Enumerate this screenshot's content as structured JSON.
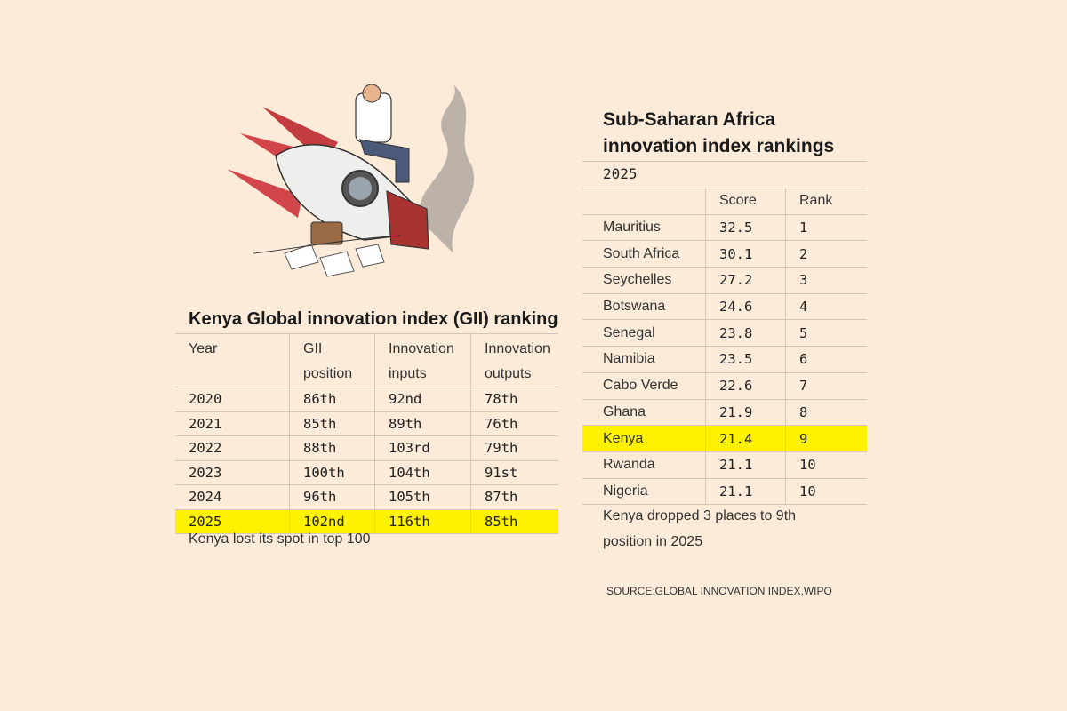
{
  "chart_data": [
    {
      "type": "table",
      "title": "Kenya Global innovation index (GII) ranking",
      "columns": [
        "Year",
        "GII position",
        "Innovation inputs",
        "Innovation outputs"
      ],
      "rows": [
        [
          "2020",
          "86th",
          "92nd",
          "78th"
        ],
        [
          "2021",
          "85th",
          "89th",
          "76th"
        ],
        [
          "2022",
          "88th",
          "103rd",
          "79th"
        ],
        [
          "2023",
          "100th",
          "104th",
          "91st"
        ],
        [
          "2024",
          "96th",
          "105th",
          "87th"
        ],
        [
          "2025",
          "102nd",
          "116th",
          "85th"
        ]
      ],
      "highlighted_row": "2025",
      "note": "Kenya lost its spot in top 100"
    },
    {
      "type": "table",
      "title": "Sub-Saharan Africa innovation index rankings",
      "subtitle": "2025",
      "columns": [
        "",
        "Score",
        "Rank"
      ],
      "rows": [
        [
          "Mauritius",
          "32.5",
          "1"
        ],
        [
          "South Africa",
          "30.1",
          "2"
        ],
        [
          "Seychelles",
          "27.2",
          "3"
        ],
        [
          "Botswana",
          "24.6",
          "4"
        ],
        [
          "Senegal",
          "23.8",
          "5"
        ],
        [
          "Namibia",
          "23.5",
          "6"
        ],
        [
          "Cabo Verde",
          "22.6",
          "7"
        ],
        [
          "Ghana",
          "21.9",
          "8"
        ],
        [
          "Kenya",
          "21.4",
          "9"
        ],
        [
          "Rwanda",
          "21.1",
          "10"
        ],
        [
          "Nigeria",
          "21.1",
          "10"
        ]
      ],
      "highlighted_row": "Kenya",
      "note": "Kenya dropped 3 places to 9th position in 2025"
    }
  ],
  "gii": {
    "title": "Kenya Global innovation index (GII) ranking",
    "head": [
      "Year",
      "GII\nposition",
      "Innovation\ninputs",
      "Innovation\noutputs"
    ],
    "note": "Kenya lost its spot in top 100"
  },
  "ssa": {
    "title_line1": "Sub-Saharan Africa",
    "title_line2": "innovation index rankings",
    "year": "2025",
    "head": [
      "",
      "Score",
      "Rank"
    ],
    "note_line1": "Kenya dropped 3 places to 9th",
    "note_line2": "position in 2025"
  },
  "source": "SOURCE:GLOBAL INNOVATION INDEX,WIPO",
  "colors": {
    "background": "#fbebd8",
    "highlight": "#fff200",
    "rule": "#d3c6b6"
  },
  "illustration": "crashed-rocket-with-sad-businessman"
}
